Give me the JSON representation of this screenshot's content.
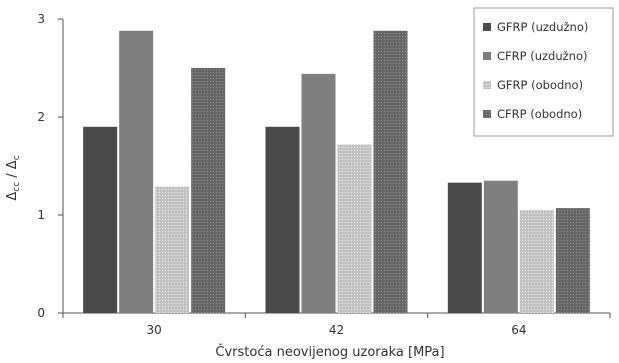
{
  "chart_data": {
    "type": "bar",
    "categories": [
      "30",
      "42",
      "64"
    ],
    "series": [
      {
        "name": "GFRP (uzdužno)",
        "values": [
          1.9,
          1.9,
          1.33
        ],
        "color": "#4a4a4a",
        "pattern": "solid"
      },
      {
        "name": "CFRP (uzdužno)",
        "values": [
          2.88,
          2.44,
          1.35
        ],
        "color": "#7f7f7f",
        "pattern": "solid"
      },
      {
        "name": "GFRP (obodno)",
        "values": [
          1.29,
          1.72,
          1.05
        ],
        "color": "#c8c8c8",
        "pattern": "dotted"
      },
      {
        "name": "CFRP (obodno)",
        "values": [
          2.5,
          2.88,
          1.07
        ],
        "color": "#6e6e6e",
        "pattern": "dotted"
      }
    ],
    "xlabel": "Čvrstoća neovijenog uzoraka [MPa]",
    "ylabel_main": "Δ",
    "ylabel_main_sub": "cc",
    "ylabel_sep": " / ",
    "ylabel_second": "Δ",
    "ylabel_second_sub": "c",
    "ylim": [
      0,
      3
    ],
    "yticks": [
      0,
      1,
      2,
      3
    ],
    "grid": false,
    "legend_position": "top-right"
  }
}
